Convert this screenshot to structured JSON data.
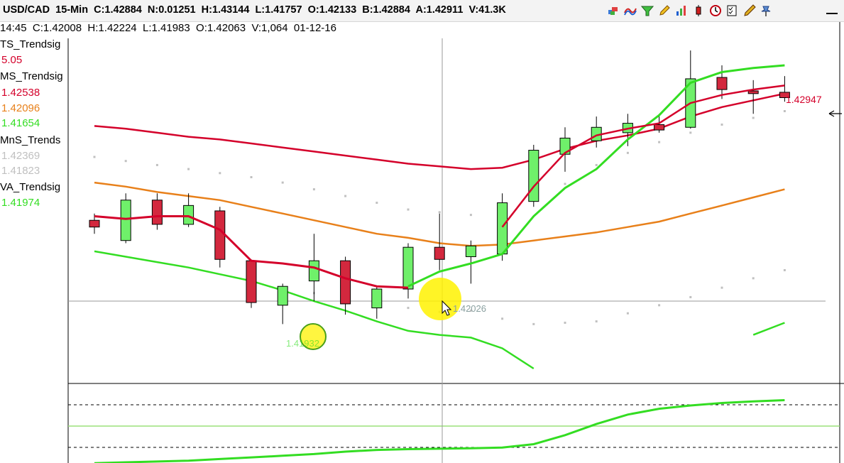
{
  "header": {
    "symbol": "USD/CAD",
    "interval": "15-Min",
    "close": "C:1.42884",
    "net": "N:0.01251",
    "high": "H:1.43144",
    "low": "L:1.41757",
    "open": "O:1.42133",
    "bid": "B:1.42884",
    "ask": "A:1.42911",
    "volume": "V:41.3K"
  },
  "toolbar": {
    "icons": [
      "layers-icon",
      "wave-icon",
      "filter-icon",
      "pencil-icon",
      "bar-chart-icon",
      "candle-icon",
      "clock-icon",
      "checklist-icon",
      "drawing-pen-icon",
      "pin-icon",
      "minimize-icon"
    ]
  },
  "subheader": {
    "text": "14:45  C:1.42008  H:1.42224  L:1.41983  O:1.42063  V:1,064  01-12-16"
  },
  "legend": [
    {
      "name": "TS_Trendsig",
      "values": [
        {
          "v": "5.05",
          "color": "#d4002a"
        }
      ]
    },
    {
      "name": "MS_Trendsig",
      "values": [
        {
          "v": "1.42538",
          "color": "#d4002a"
        },
        {
          "v": "1.42096",
          "color": "#e8801a"
        },
        {
          "v": "1.41654",
          "color": "#33dd22"
        }
      ]
    },
    {
      "name": "MnS_Trends",
      "values": [
        {
          "v": "1.42369",
          "color": "#c0c0c0"
        },
        {
          "v": "1.41823",
          "color": "#c0c0c0"
        }
      ]
    },
    {
      "name": "VA_Trendsig",
      "values": [
        {
          "v": "1.41974",
          "color": "#33dd22"
        }
      ]
    }
  ],
  "annotations": {
    "last_price": "1.42947",
    "cursor_readout": "1.42026",
    "circle_readout": "1.41932"
  },
  "colors": {
    "bull": "#6ff06a",
    "bear": "#d3283e",
    "ma_red": "#d4002a",
    "ma_orange": "#e8801a",
    "ma_green": "#33dd22",
    "dots": "#c0c0c0",
    "highlight": "#fff200"
  },
  "chart_data": {
    "type": "candlestick",
    "candles": [
      {
        "o": 1.4175,
        "h": 1.418,
        "l": 1.4165,
        "c": 1.417
      },
      {
        "o": 1.416,
        "h": 1.4195,
        "l": 1.4158,
        "c": 1.419
      },
      {
        "o": 1.419,
        "h": 1.4195,
        "l": 1.4168,
        "c": 1.4172
      },
      {
        "o": 1.4172,
        "h": 1.4195,
        "l": 1.417,
        "c": 1.4186
      },
      {
        "o": 1.4182,
        "h": 1.4185,
        "l": 1.414,
        "c": 1.4146
      },
      {
        "o": 1.4145,
        "h": 1.4146,
        "l": 1.411,
        "c": 1.4114
      },
      {
        "o": 1.4112,
        "h": 1.4128,
        "l": 1.4098,
        "c": 1.4126
      },
      {
        "o": 1.413,
        "h": 1.4165,
        "l": 1.4115,
        "c": 1.4145
      },
      {
        "o": 1.4145,
        "h": 1.4148,
        "l": 1.4105,
        "c": 1.4113
      },
      {
        "o": 1.411,
        "h": 1.4126,
        "l": 1.4102,
        "c": 1.4124
      },
      {
        "o": 1.4124,
        "h": 1.4158,
        "l": 1.4117,
        "c": 1.4155
      },
      {
        "o": 1.4155,
        "h": 1.418,
        "l": 1.4138,
        "c": 1.4146
      },
      {
        "o": 1.4148,
        "h": 1.416,
        "l": 1.4128,
        "c": 1.4156
      },
      {
        "o": 1.415,
        "h": 1.4195,
        "l": 1.4145,
        "c": 1.4188
      },
      {
        "o": 1.4189,
        "h": 1.4231,
        "l": 1.4185,
        "c": 1.4227
      },
      {
        "o": 1.4224,
        "h": 1.4244,
        "l": 1.4211,
        "c": 1.4236
      },
      {
        "o": 1.4234,
        "h": 1.4252,
        "l": 1.4229,
        "c": 1.4244
      },
      {
        "o": 1.424,
        "h": 1.4254,
        "l": 1.423,
        "c": 1.4247
      },
      {
        "o": 1.4246,
        "h": 1.4253,
        "l": 1.424,
        "c": 1.4242
      },
      {
        "o": 1.4244,
        "h": 1.4301,
        "l": 1.4243,
        "c": 1.428
      },
      {
        "o": 1.4281,
        "h": 1.429,
        "l": 1.4265,
        "c": 1.4272
      },
      {
        "o": 1.4271,
        "h": 1.4279,
        "l": 1.4254,
        "c": 1.4269
      },
      {
        "o": 1.427,
        "h": 1.4282,
        "l": 1.4263,
        "c": 1.4266
      }
    ],
    "mid_line": [
      1.4178,
      1.4176,
      1.4178,
      1.4178,
      1.4168,
      1.4145,
      1.4143,
      1.414,
      1.4132,
      1.4126,
      1.4125,
      1.4135,
      1.415,
      1.417,
      1.42,
      1.4225,
      1.4238,
      1.4243,
      1.4247,
      1.4262,
      1.4268,
      1.4272,
      1.4275
    ],
    "upper_line": [
      1.4245,
      1.4243,
      1.424,
      1.4237,
      1.4235,
      1.4232,
      1.4229,
      1.4226,
      1.4223,
      1.422,
      1.4217,
      1.4215,
      1.4213,
      1.4214,
      1.422,
      1.4228,
      1.4234,
      1.4238,
      1.4243,
      1.4252,
      1.4259,
      1.4264,
      1.4269
    ],
    "middle_band": [
      1.4203,
      1.42,
      1.4196,
      1.4193,
      1.419,
      1.4185,
      1.418,
      1.4175,
      1.417,
      1.4165,
      1.4162,
      1.4158,
      1.4156,
      1.4157,
      1.416,
      1.4163,
      1.4166,
      1.417,
      1.4174,
      1.418,
      1.4186,
      1.4192,
      1.4198
    ],
    "lower_line": [
      1.4152,
      1.4148,
      1.4144,
      1.414,
      1.4135,
      1.413,
      1.4123,
      1.4115,
      1.4108,
      1.41,
      1.4093,
      1.409,
      1.4088,
      1.408,
      1.4065,
      null,
      null,
      null,
      null,
      null,
      null,
      1.409,
      1.4099
    ],
    "green_trail": [
      null,
      null,
      null,
      null,
      null,
      null,
      null,
      null,
      null,
      null,
      1.4126,
      1.4137,
      1.4143,
      1.415,
      1.4178,
      1.4199,
      1.4213,
      1.4235,
      1.4253,
      1.4277,
      1.4285,
      1.4288,
      1.429
    ],
    "dots_upper": [
      1.4222,
      1.4219,
      1.4216,
      1.4213,
      1.421,
      1.4207,
      1.4203,
      1.4198,
      1.4193,
      1.4188,
      1.4183,
      1.4181,
      1.4179,
      1.4182,
      1.419,
      1.4202,
      1.4216,
      1.4225,
      1.4233,
      1.424,
      1.4246,
      1.4251,
      1.4256
    ],
    "dots_lower": [
      null,
      null,
      null,
      null,
      null,
      null,
      1.4125,
      1.4121,
      1.4118,
      1.4114,
      1.411,
      1.4107,
      1.4108,
      1.4102,
      1.4098,
      1.4099,
      1.41,
      1.4106,
      1.4112,
      1.4118,
      1.4125,
      1.4132,
      1.4138
    ],
    "price_range": [
      1.4055,
      1.431
    ],
    "indicator_lower_pane": [
      -0.9,
      -0.88,
      -0.86,
      -0.84,
      -0.8,
      -0.76,
      -0.72,
      -0.68,
      -0.62,
      -0.58,
      -0.56,
      -0.55,
      -0.54,
      -0.52,
      -0.44,
      -0.22,
      0.05,
      0.28,
      0.42,
      0.5,
      0.56,
      0.6,
      0.63
    ]
  }
}
